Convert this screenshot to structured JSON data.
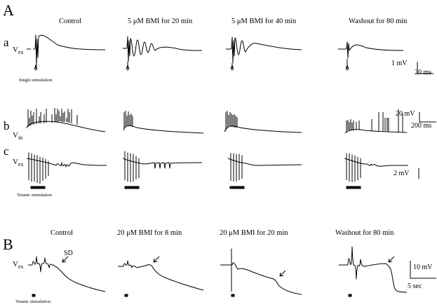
{
  "panels": {
    "A": {
      "label": "A",
      "columns": [
        "Control",
        "5 μM BMI for 20 min",
        "5 μM BMI for 40 min",
        "Washout for 80 min"
      ],
      "rows": {
        "a": {
          "label": "a",
          "signal": "V",
          "signal_sub": "ex"
        },
        "b": {
          "label": "b",
          "signal": "V",
          "signal_sub": "in"
        },
        "c": {
          "label": "c",
          "signal": "V",
          "signal_sub": "ex"
        }
      },
      "notes": {
        "single": "Single stimulation",
        "tetanic": "Tetanic stimulation"
      },
      "scale_bars": {
        "a": {
          "amplitude": "1 mV",
          "time": "20 ms"
        },
        "b": {
          "amplitude": "20 mV",
          "time": "200 ms"
        },
        "c": {
          "amplitude": "2 mV"
        }
      }
    },
    "B": {
      "label": "B",
      "columns": [
        "Control",
        "20 μM BMI for 8 min",
        "20 μM BMI for 20 min",
        "Washout for 80 min"
      ],
      "signal": "V",
      "signal_sub": "ex",
      "annotation": "SD",
      "notes": {
        "tetanic": "Tetanic stimulation"
      },
      "scale_bars": {
        "amplitude": "10 mV",
        "time": "5 sec"
      }
    }
  }
}
